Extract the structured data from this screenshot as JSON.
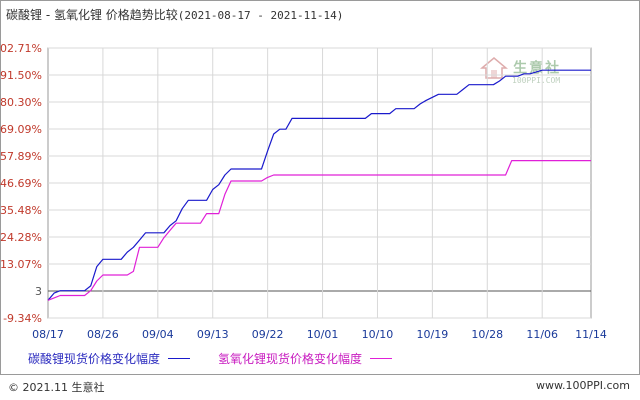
{
  "title": {
    "main": "碳酸锂 - 氢氧化锂 价格趋势比较",
    "range": "(2021-08-17 - 2021-11-14)"
  },
  "watermark": {
    "text": "生意社",
    "sub": "100PPI.COM"
  },
  "footer": {
    "copyright_symbol": "©",
    "left": "2021.11 生意社",
    "right": "www.100PPI.com"
  },
  "colors": {
    "series1": "#1a1acc",
    "series2": "#e020d8",
    "zero_line": "#555555",
    "grid": "#d8d8d8"
  },
  "chart_data": {
    "type": "line",
    "title": "碳酸锂 - 氢氧化锂 价格趋势比较",
    "subtitle": "(2021-08-17 - 2021-11-14)",
    "xlabel": "",
    "ylabel": "",
    "y_ticks": [
      "102.71%",
      "91.50%",
      "80.30%",
      "69.09%",
      "57.89%",
      "46.69%",
      "35.48%",
      "24.28%",
      "13.07%",
      "3",
      "-9.34%"
    ],
    "ylim": [
      -9.34,
      102.71
    ],
    "x_ticks": [
      "08/17",
      "08/26",
      "09/04",
      "09/13",
      "09/22",
      "10/01",
      "10/10",
      "10/19",
      "10/28",
      "11/06",
      "11/14"
    ],
    "grid": true,
    "legend": "bottom",
    "series": [
      {
        "name": "碳酸锂现货价格变化幅度",
        "points": [
          [
            "08/17",
            -2.0
          ],
          [
            "08/18",
            1.0
          ],
          [
            "08/19",
            2.0
          ],
          [
            "08/23",
            2.0
          ],
          [
            "08/24",
            4.0
          ],
          [
            "08/25",
            12.0
          ],
          [
            "08/26",
            15.0
          ],
          [
            "08/29",
            15.0
          ],
          [
            "08/30",
            18.0
          ],
          [
            "08/31",
            20.0
          ],
          [
            "09/01",
            23.0
          ],
          [
            "09/02",
            26.0
          ],
          [
            "09/05",
            26.0
          ],
          [
            "09/06",
            29.0
          ],
          [
            "09/07",
            31.0
          ],
          [
            "09/08",
            36.0
          ],
          [
            "09/09",
            39.5
          ],
          [
            "09/12",
            39.5
          ],
          [
            "09/13",
            44.0
          ],
          [
            "09/14",
            46.0
          ],
          [
            "09/15",
            50.0
          ],
          [
            "09/16",
            52.5
          ],
          [
            "09/21",
            52.5
          ],
          [
            "09/22",
            60.0
          ],
          [
            "09/23",
            67.0
          ],
          [
            "09/24",
            69.0
          ],
          [
            "09/25",
            69.0
          ],
          [
            "09/26",
            73.5
          ],
          [
            "10/08",
            73.5
          ],
          [
            "10/09",
            75.5
          ],
          [
            "10/12",
            75.5
          ],
          [
            "10/13",
            77.5
          ],
          [
            "10/16",
            77.5
          ],
          [
            "10/17",
            79.5
          ],
          [
            "10/18",
            81.0
          ],
          [
            "10/20",
            83.5
          ],
          [
            "10/23",
            83.5
          ],
          [
            "10/24",
            85.5
          ],
          [
            "10/25",
            87.5
          ],
          [
            "10/29",
            87.5
          ],
          [
            "10/30",
            89.0
          ],
          [
            "10/31",
            91.0
          ],
          [
            "11/02",
            91.0
          ],
          [
            "11/03",
            92.0
          ],
          [
            "11/04",
            92.0
          ],
          [
            "11/06",
            93.5
          ],
          [
            "11/14",
            93.5
          ]
        ]
      },
      {
        "name": "氢氧化锂现货价格变化幅度",
        "points": [
          [
            "08/17",
            -2.0
          ],
          [
            "08/18",
            -1.0
          ],
          [
            "08/19",
            0.0
          ],
          [
            "08/23",
            0.0
          ],
          [
            "08/24",
            2.0
          ],
          [
            "08/25",
            6.0
          ],
          [
            "08/26",
            8.5
          ],
          [
            "08/30",
            8.5
          ],
          [
            "08/31",
            10.0
          ],
          [
            "09/01",
            20.0
          ],
          [
            "09/04",
            20.0
          ],
          [
            "09/05",
            24.0
          ],
          [
            "09/06",
            27.0
          ],
          [
            "09/07",
            30.0
          ],
          [
            "09/11",
            30.0
          ],
          [
            "09/12",
            34.0
          ],
          [
            "09/14",
            34.0
          ],
          [
            "09/15",
            42.0
          ],
          [
            "09/16",
            47.5
          ],
          [
            "09/21",
            47.5
          ],
          [
            "09/22",
            49.0
          ],
          [
            "09/23",
            50.0
          ],
          [
            "10/31",
            50.0
          ],
          [
            "11/01",
            56.0
          ],
          [
            "11/14",
            56.0
          ]
        ]
      }
    ]
  }
}
